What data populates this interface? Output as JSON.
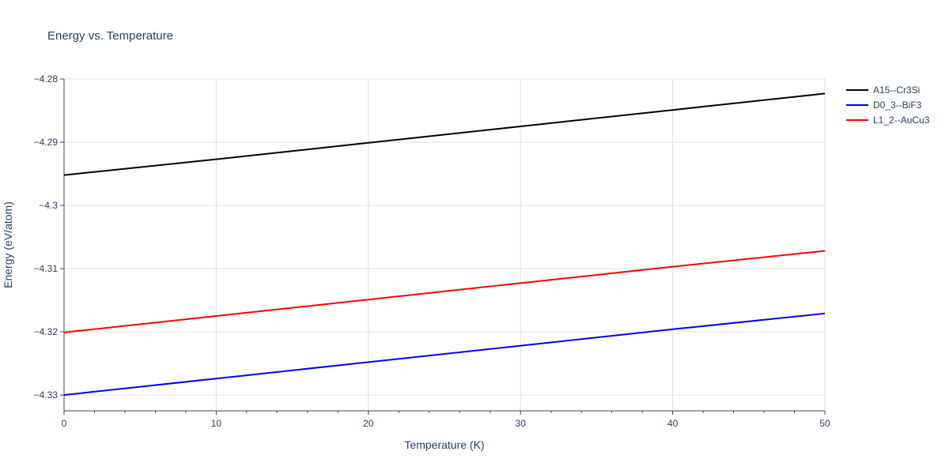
{
  "chart_data": {
    "type": "line",
    "title": "Energy vs. Temperature",
    "xlabel": "Temperature (K)",
    "ylabel": "Energy (eV/atom)",
    "xlim": [
      0,
      50
    ],
    "ylim": [
      -4.3325,
      -4.28
    ],
    "x_ticks": [
      0,
      10,
      20,
      30,
      40,
      50
    ],
    "x_minor_step": 2,
    "y_ticks": [
      -4.33,
      -4.32,
      -4.31,
      -4.3,
      -4.29,
      -4.28
    ],
    "y_tick_labels": [
      "−4.33",
      "−4.32",
      "−4.31",
      "−4.3",
      "−4.29",
      "−4.28"
    ],
    "grid": true,
    "legend_position": "top-right",
    "series": [
      {
        "name": "A15--Cr3Si",
        "color": "#000000",
        "x": [
          0,
          10,
          20,
          30,
          40,
          50
        ],
        "y": [
          -4.2952,
          -4.2927,
          -4.2901,
          -4.2875,
          -4.2849,
          -4.2823
        ]
      },
      {
        "name": "D0_3--BiF3",
        "color": "#0000ff",
        "x": [
          0,
          10,
          20,
          30,
          40,
          50
        ],
        "y": [
          -4.33,
          -4.3274,
          -4.3248,
          -4.3222,
          -4.3196,
          -4.3171
        ]
      },
      {
        "name": "L1_2--AuCu3",
        "color": "#ff0000",
        "x": [
          0,
          10,
          20,
          30,
          40,
          50
        ],
        "y": [
          -4.3201,
          -4.3175,
          -4.3149,
          -4.3123,
          -4.3097,
          -4.3072
        ]
      }
    ]
  }
}
